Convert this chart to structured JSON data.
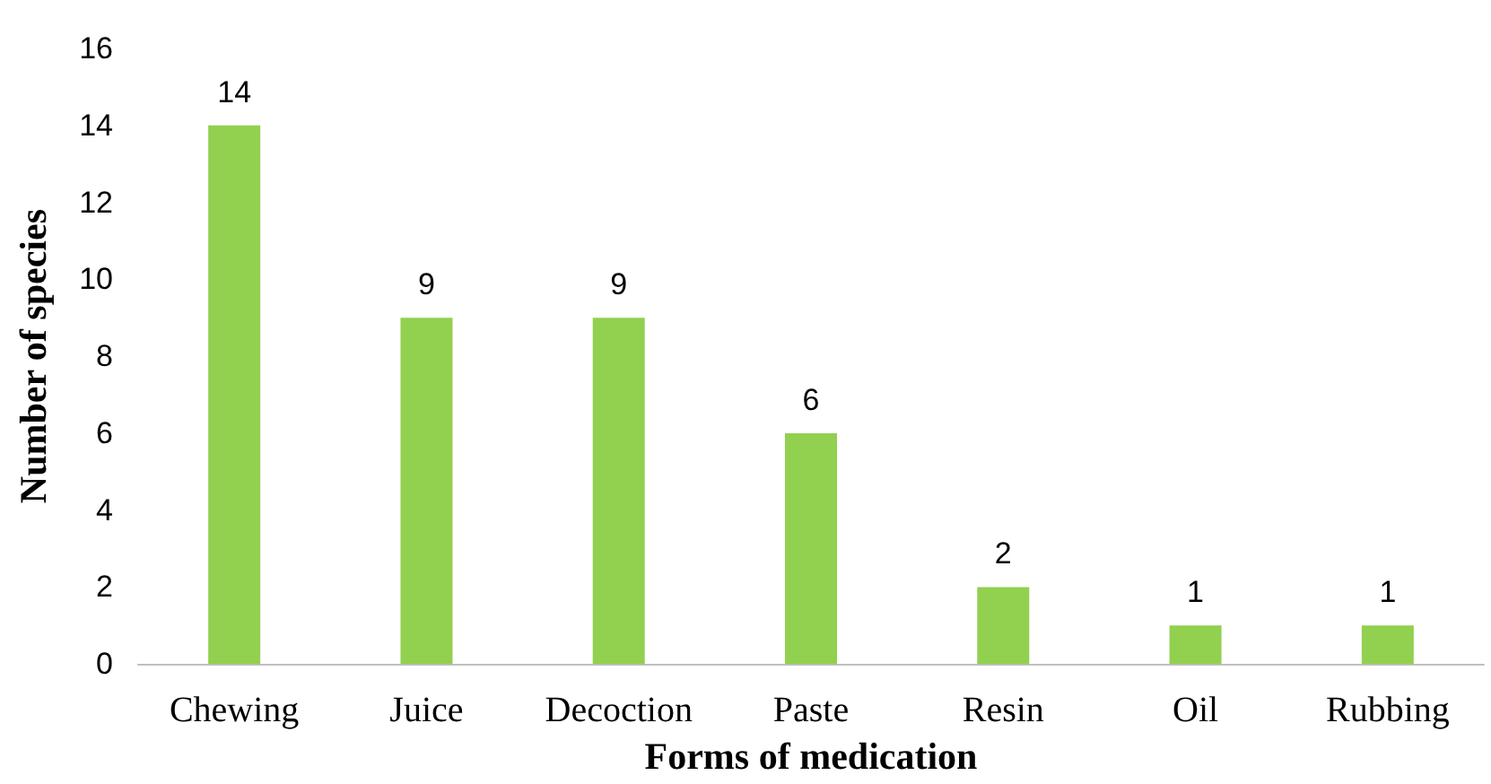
{
  "chart_data": {
    "type": "bar",
    "xlabel": "Forms of medication",
    "ylabel": "Number of species",
    "categories": [
      "Chewing",
      "Juice",
      "Decoction",
      "Paste",
      "Resin",
      "Oil",
      "Rubbing"
    ],
    "values": [
      14,
      9,
      9,
      6,
      2,
      1,
      1
    ],
    "color": "#92d050",
    "ylim": [
      0,
      16
    ],
    "yticks": [
      0,
      2,
      4,
      6,
      8,
      10,
      12,
      14,
      16
    ],
    "grid": false,
    "data_labels": true
  }
}
